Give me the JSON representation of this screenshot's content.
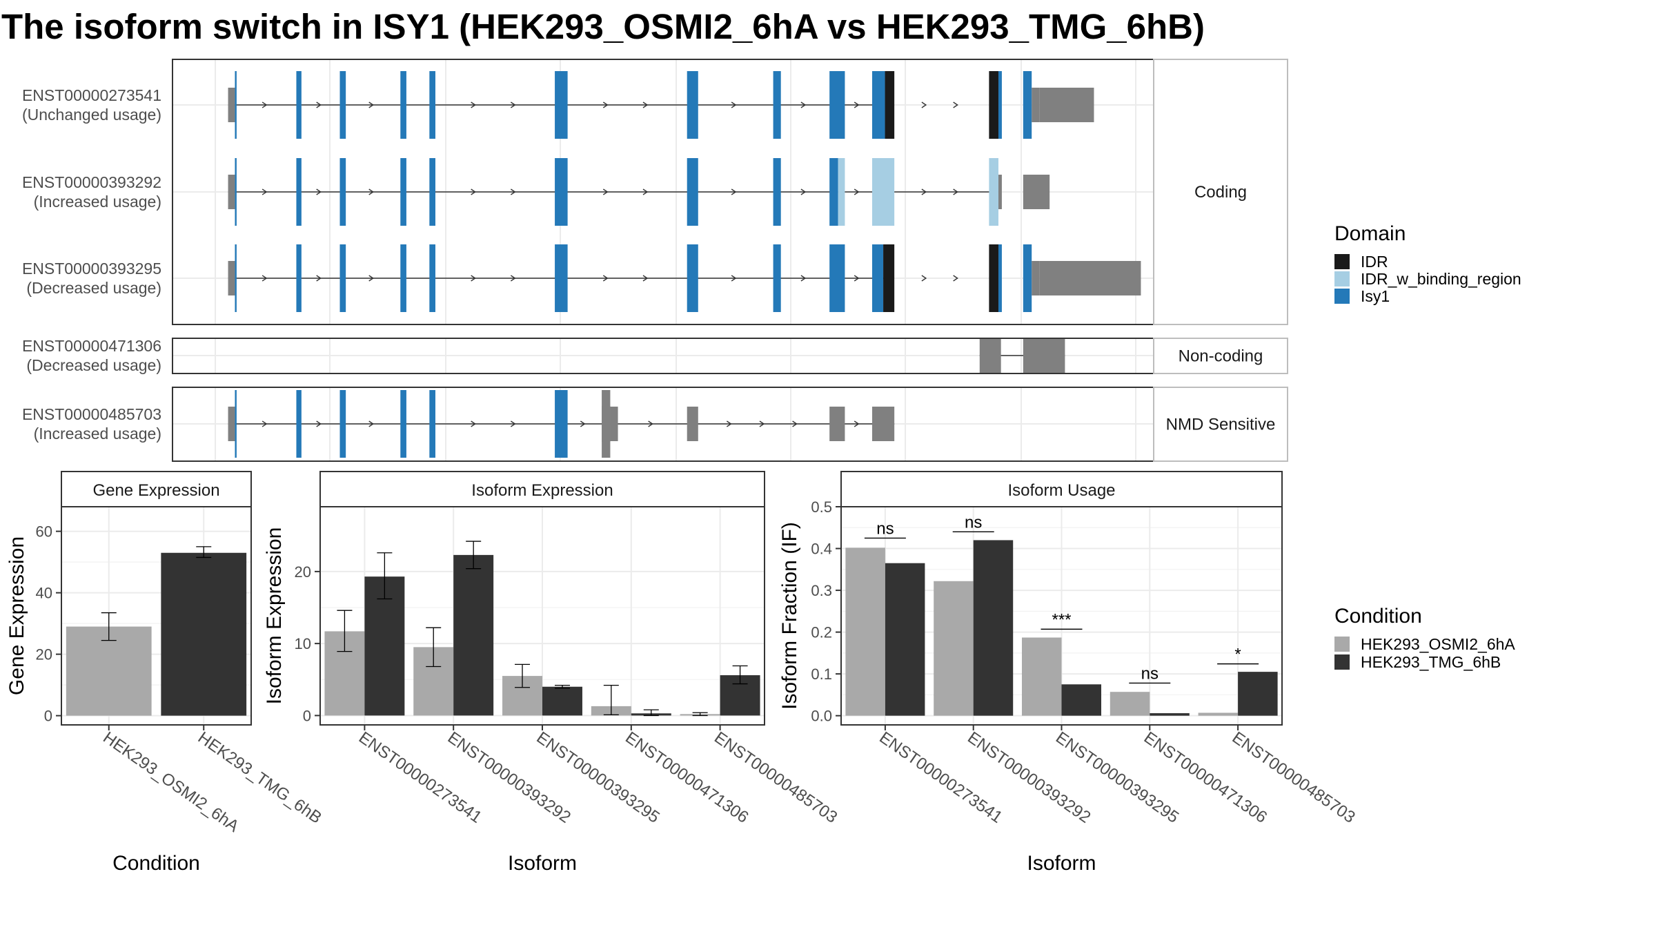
{
  "title": "The isoform switch in ISY1 (HEK293_OSMI2_6hA vs HEK293_TMG_6hB)",
  "colors": {
    "isy1": "#2479B8",
    "idr": "#1A1A1A",
    "idr_binding": "#A6CEE3",
    "noncoding": "#808080",
    "cond1": "#A9A9A9",
    "cond2": "#333333",
    "panel_border": "#555555",
    "strip_fill": "#FFFFFF",
    "grid": "#EBEBEB"
  },
  "domain_legend": {
    "title": "Domain",
    "items": [
      {
        "label": "IDR",
        "color": "#1A1A1A"
      },
      {
        "label": "IDR_w_binding_region",
        "color": "#A6CEE3"
      },
      {
        "label": "Isy1",
        "color": "#2479B8"
      }
    ]
  },
  "condition_legend": {
    "title": "Condition",
    "items": [
      {
        "label": "HEK293_OSMI2_6hA",
        "color": "#A9A9A9"
      },
      {
        "label": "HEK293_TMG_6hB",
        "color": "#333333"
      }
    ]
  },
  "structure": {
    "groups": [
      {
        "label": "Coding",
        "isoforms": [
          0,
          1,
          2
        ]
      },
      {
        "label": "Non-coding",
        "isoforms": [
          3
        ]
      },
      {
        "label": "NMD Sensitive",
        "isoforms": [
          4
        ]
      }
    ],
    "isoforms": [
      {
        "id": "ENST00000273541",
        "usage": "(Unchanged usage)",
        "intron": [
          15,
          785
        ],
        "exons": [
          {
            "s": 15,
            "e": 23,
            "t": "u"
          },
          {
            "s": 23,
            "e": 25,
            "t": "c"
          },
          {
            "s": 95,
            "e": 101,
            "t": "c"
          },
          {
            "s": 146,
            "e": 153,
            "t": "c"
          },
          {
            "s": 217,
            "e": 224,
            "t": "c"
          },
          {
            "s": 251,
            "e": 258,
            "t": "c"
          },
          {
            "s": 398,
            "e": 413,
            "t": "c"
          },
          {
            "s": 553,
            "e": 566,
            "t": "c"
          },
          {
            "s": 654,
            "e": 663,
            "t": "c"
          },
          {
            "s": 720,
            "e": 738,
            "t": "c"
          },
          {
            "s": 770,
            "e": 785,
            "t": "c"
          },
          {
            "s": 785,
            "e": 796,
            "t": "i"
          },
          {
            "s": 907,
            "e": 918,
            "t": "i"
          },
          {
            "s": 918,
            "e": 922,
            "t": "c"
          },
          {
            "s": 947,
            "e": 957,
            "t": "c"
          },
          {
            "s": 957,
            "e": 966,
            "t": "u"
          },
          {
            "s": 966,
            "e": 1030,
            "t": "ut"
          }
        ]
      },
      {
        "id": "ENST00000393292",
        "usage": "(Increased usage)",
        "intron": [
          15,
          920
        ],
        "exons": [
          {
            "s": 15,
            "e": 23,
            "t": "u"
          },
          {
            "s": 23,
            "e": 25,
            "t": "c"
          },
          {
            "s": 95,
            "e": 101,
            "t": "c"
          },
          {
            "s": 146,
            "e": 153,
            "t": "c"
          },
          {
            "s": 217,
            "e": 224,
            "t": "c"
          },
          {
            "s": 251,
            "e": 258,
            "t": "c"
          },
          {
            "s": 398,
            "e": 413,
            "t": "c"
          },
          {
            "s": 553,
            "e": 566,
            "t": "c"
          },
          {
            "s": 654,
            "e": 663,
            "t": "c"
          },
          {
            "s": 720,
            "e": 730,
            "t": "c"
          },
          {
            "s": 730,
            "e": 738,
            "t": "b"
          },
          {
            "s": 770,
            "e": 796,
            "t": "b"
          },
          {
            "s": 907,
            "e": 918,
            "t": "b"
          },
          {
            "s": 918,
            "e": 922,
            "t": "u"
          },
          {
            "s": 947,
            "e": 978,
            "t": "ut"
          }
        ]
      },
      {
        "id": "ENST00000393295",
        "usage": "(Decreased usage)",
        "intron": [
          15,
          785
        ],
        "exons": [
          {
            "s": 15,
            "e": 23,
            "t": "u"
          },
          {
            "s": 23,
            "e": 25,
            "t": "c"
          },
          {
            "s": 95,
            "e": 101,
            "t": "c"
          },
          {
            "s": 146,
            "e": 153,
            "t": "c"
          },
          {
            "s": 217,
            "e": 224,
            "t": "c"
          },
          {
            "s": 251,
            "e": 258,
            "t": "c"
          },
          {
            "s": 398,
            "e": 413,
            "t": "c"
          },
          {
            "s": 553,
            "e": 566,
            "t": "c"
          },
          {
            "s": 654,
            "e": 663,
            "t": "c"
          },
          {
            "s": 720,
            "e": 738,
            "t": "c"
          },
          {
            "s": 770,
            "e": 783,
            "t": "c"
          },
          {
            "s": 783,
            "e": 796,
            "t": "i"
          },
          {
            "s": 907,
            "e": 918,
            "t": "i"
          },
          {
            "s": 918,
            "e": 922,
            "t": "c"
          },
          {
            "s": 947,
            "e": 957,
            "t": "c"
          },
          {
            "s": 957,
            "e": 966,
            "t": "u"
          },
          {
            "s": 966,
            "e": 1085,
            "t": "ut"
          }
        ]
      },
      {
        "id": "ENST00000471306",
        "usage": "(Decreased usage)",
        "intron": [
          896,
          996
        ],
        "exons": [
          {
            "s": 896,
            "e": 921,
            "t": "n"
          },
          {
            "s": 947,
            "e": 996,
            "t": "n"
          }
        ]
      },
      {
        "id": "ENST00000485703",
        "usage": "(Increased usage)",
        "intron": [
          15,
          796
        ],
        "exons": [
          {
            "s": 15,
            "e": 23,
            "t": "u"
          },
          {
            "s": 23,
            "e": 25,
            "t": "c"
          },
          {
            "s": 95,
            "e": 101,
            "t": "c"
          },
          {
            "s": 146,
            "e": 153,
            "t": "c"
          },
          {
            "s": 217,
            "e": 224,
            "t": "c"
          },
          {
            "s": 251,
            "e": 258,
            "t": "c"
          },
          {
            "s": 398,
            "e": 413,
            "t": "c"
          },
          {
            "s": 453,
            "e": 463,
            "t": "n"
          },
          {
            "s": 463,
            "e": 472,
            "t": "ns"
          },
          {
            "s": 553,
            "e": 566,
            "t": "ns"
          },
          {
            "s": 720,
            "e": 738,
            "t": "ns"
          },
          {
            "s": 770,
            "e": 796,
            "t": "ns"
          }
        ]
      }
    ]
  },
  "chart_data": [
    {
      "type": "bar",
      "title": "Gene Expression",
      "xlabel": "Condition",
      "ylabel": "Gene Expression",
      "ylim": [
        -3,
        68
      ],
      "yticks": [
        0,
        20,
        40,
        60
      ],
      "categories": [
        "HEK293_OSMI2_6hA",
        "HEK293_TMG_6hB"
      ],
      "values": [
        29,
        53
      ],
      "error_low": [
        24.5,
        51.5
      ],
      "error_high": [
        33.5,
        55
      ]
    },
    {
      "type": "bar",
      "title": "Isoform Expression",
      "xlabel": "Isoform",
      "ylabel": "Isoform Expression",
      "ylim": [
        -1.3,
        29
      ],
      "yticks": [
        0,
        10,
        20
      ],
      "categories": [
        "ENST00000273541",
        "ENST00000393292",
        "ENST00000393295",
        "ENST00000471306",
        "ENST00000485703"
      ],
      "series": [
        {
          "name": "HEK293_OSMI2_6hA",
          "values": [
            11.7,
            9.5,
            5.5,
            1.3,
            0.2
          ],
          "error_low": [
            8.9,
            6.8,
            3.9,
            0.1,
            0.0
          ],
          "error_high": [
            14.6,
            12.2,
            7.1,
            4.2,
            0.4
          ]
        },
        {
          "name": "HEK293_TMG_6hB",
          "values": [
            19.3,
            22.3,
            4.0,
            0.3,
            5.6
          ],
          "error_low": [
            16.2,
            20.4,
            3.8,
            0.0,
            4.4
          ],
          "error_high": [
            22.6,
            24.2,
            4.2,
            0.8,
            6.9
          ]
        }
      ]
    },
    {
      "type": "bar",
      "title": "Isoform Usage",
      "xlabel": "Isoform",
      "ylabel": "Isoform Fraction (IF)",
      "ylim": [
        -0.022,
        0.5
      ],
      "yticks": [
        "0.0",
        "0.1",
        "0.2",
        "0.3",
        "0.4",
        "0.5"
      ],
      "categories": [
        "ENST00000273541",
        "ENST00000393292",
        "ENST00000393295",
        "ENST00000471306",
        "ENST00000485703"
      ],
      "series": [
        {
          "name": "HEK293_OSMI2_6hA",
          "values": [
            0.402,
            0.322,
            0.187,
            0.057,
            0.007
          ]
        },
        {
          "name": "HEK293_TMG_6hB",
          "values": [
            0.365,
            0.42,
            0.075,
            0.006,
            0.105
          ]
        }
      ],
      "significance": [
        "ns",
        "ns",
        "***",
        "ns",
        "*"
      ],
      "significance_level": [
        0.425,
        0.44,
        0.207,
        0.078,
        0.124
      ]
    }
  ]
}
